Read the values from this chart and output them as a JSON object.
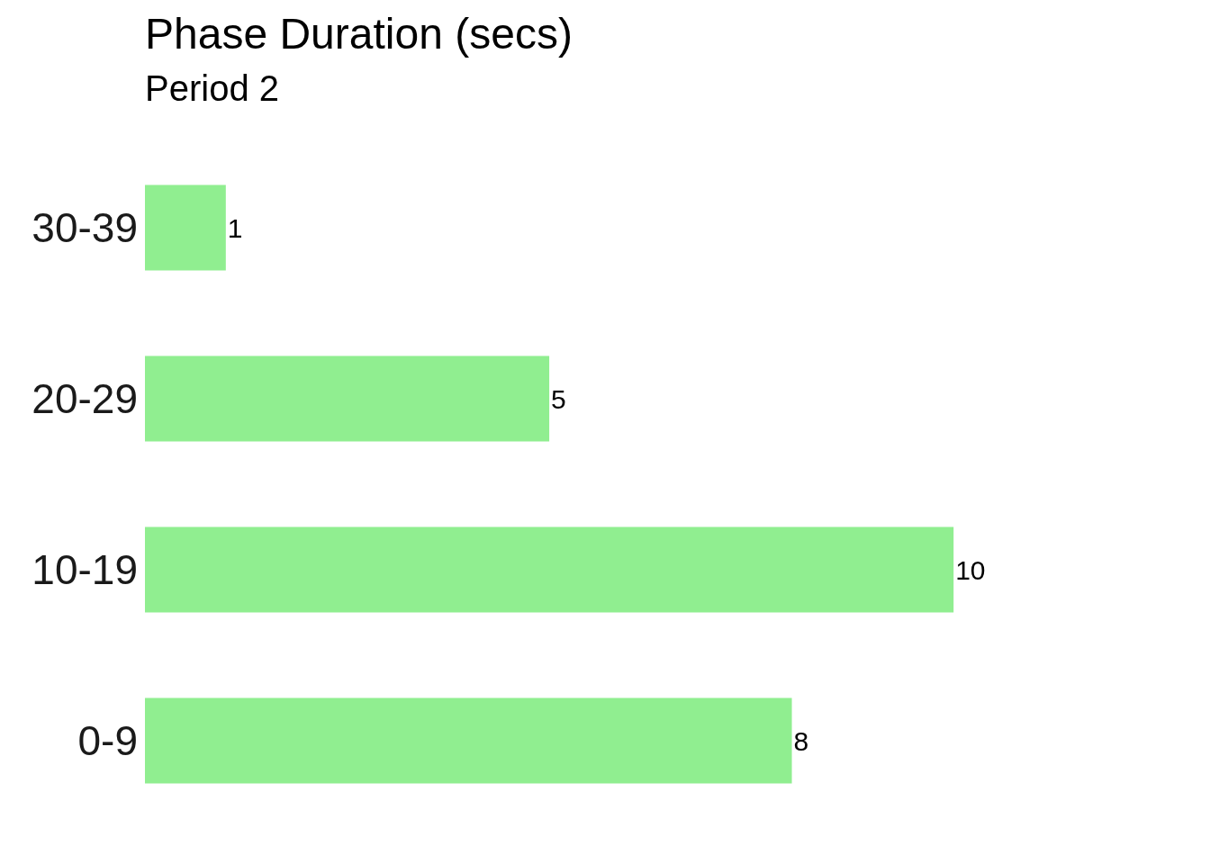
{
  "chart_data": {
    "type": "bar",
    "orientation": "horizontal",
    "title": "Phase Duration (secs)",
    "subtitle": "Period 2",
    "categories": [
      "30-39",
      "20-29",
      "10-19",
      "0-9"
    ],
    "values": [
      1,
      5,
      10,
      8
    ],
    "color": "#90ee90",
    "data_labels": true
  }
}
